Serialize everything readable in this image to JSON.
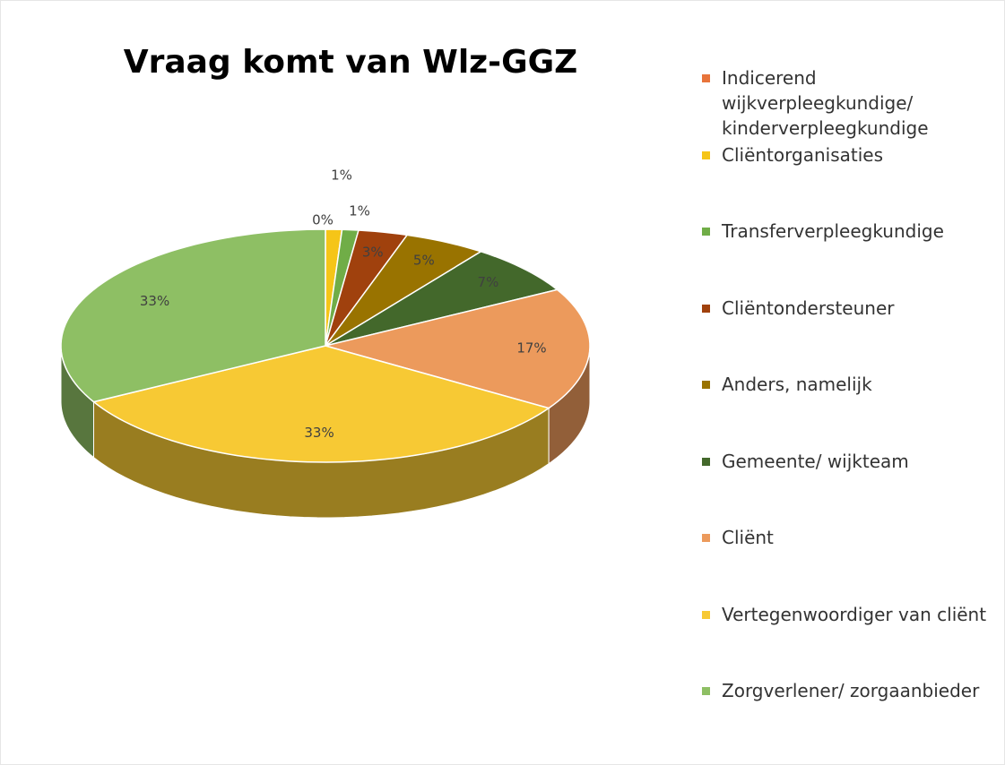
{
  "chart_data": {
    "type": "pie",
    "title": "Vraag komt van Wlz-GGZ",
    "categories": [
      "Indicerend wijkverpleegkundige/ kinderverpleegkundige",
      "Cliëntorganisaties",
      "Transferverpleegkundige",
      "Cliëntondersteuner",
      "Anders, namelijk",
      "Gemeente/ wijkteam",
      "Cliënt",
      "Vertegenwoordiger van cliënt",
      "Zorgverlener/ zorgaanbieder"
    ],
    "values": [
      0,
      1,
      1,
      3,
      5,
      7,
      17,
      33,
      33
    ],
    "value_labels": [
      "0%",
      "1%",
      "1%",
      "3%",
      "5%",
      "7%",
      "17%",
      "33%",
      "33%"
    ],
    "colors": [
      "#e8743b",
      "#f5c518",
      "#70ad47",
      "#a0410d",
      "#997300",
      "#43682b",
      "#ec9a5c",
      "#f7c934",
      "#8ebf64"
    ],
    "legend": "right"
  }
}
